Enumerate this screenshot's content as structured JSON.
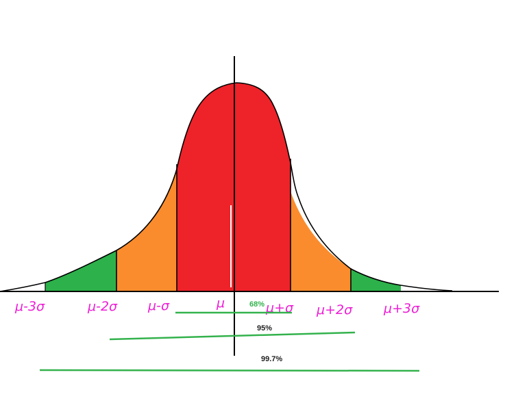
{
  "diagram": {
    "sigma_labels": [
      "μ-3σ",
      "μ-2σ",
      "μ-σ",
      "μ",
      "μ+σ",
      "μ+2σ",
      "μ+3σ"
    ],
    "percent_labels": {
      "one_sigma": "68%",
      "two_sigma": "95%",
      "three_sigma": "99.7%"
    },
    "colors": {
      "band_1sigma": "#ee2229",
      "band_2sigma": "#fb8c2d",
      "band_3sigma": "#2db14b",
      "axis": "#000000",
      "labels": "#ee1fd6",
      "range_lines": "#33b24c",
      "label_68": "#33b24c",
      "label_95": "#222222",
      "label_997": "#222222"
    }
  }
}
